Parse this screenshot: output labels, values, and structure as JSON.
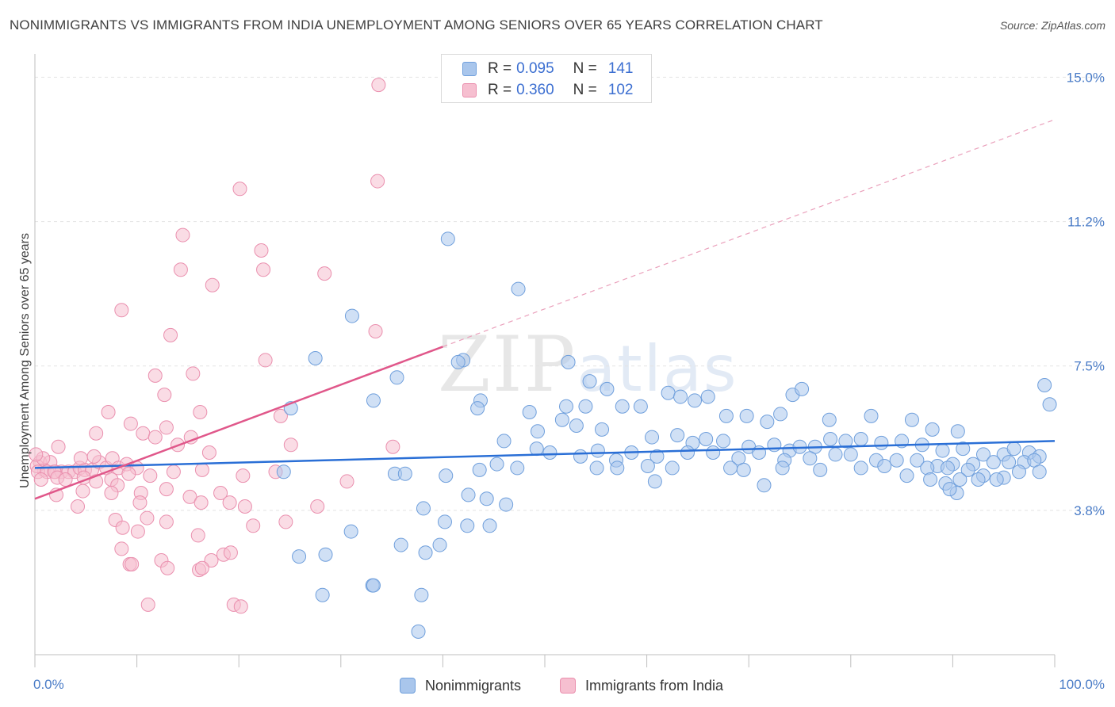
{
  "title": "NONIMMIGRANTS VS IMMIGRANTS FROM INDIA UNEMPLOYMENT AMONG SENIORS OVER 65 YEARS CORRELATION CHART",
  "source": "Source: ZipAtlas.com",
  "watermark": {
    "zip": "ZIP",
    "atlas": "atlas"
  },
  "legend": {
    "rows": [
      {
        "r_label": "R =",
        "r_value": "0.095",
        "n_label": "N =",
        "n_value": "141"
      },
      {
        "r_label": "R =",
        "r_value": "0.360",
        "n_label": "N =",
        "n_value": "102"
      }
    ]
  },
  "bottom_legend": [
    "Nonimmigrants",
    "Immigrants from India"
  ],
  "colors": {
    "blue_fill": "#a9c6ec",
    "blue_stroke": "#6f9fdc",
    "blue_line": "#2a6fd6",
    "pink_fill": "#f6bfd0",
    "pink_stroke": "#ea8fae",
    "pink_line": "#e0578a"
  },
  "chart_data": {
    "type": "scatter",
    "title": "NONIMMIGRANTS VS IMMIGRANTS FROM INDIA UNEMPLOYMENT AMONG SENIORS OVER 65 YEARS CORRELATION CHART",
    "ylabel": "Unemployment Among Seniors over 65 years",
    "xlabel": "",
    "x_tick_labels": [
      "0.0%",
      "100.0%"
    ],
    "y_tick_labels": [
      "3.8%",
      "7.5%",
      "11.2%",
      "15.0%"
    ],
    "y_ticks": [
      3.75,
      7.5,
      11.25,
      15.0
    ],
    "xlim": [
      0,
      100
    ],
    "ylim": [
      0,
      15.4
    ],
    "grid": true,
    "legend_position": "top-center",
    "series": [
      {
        "name": "Nonimmigrants",
        "r": 0.095,
        "n": 141,
        "trend": {
          "x": [
            0,
            100
          ],
          "y": [
            4.85,
            5.55
          ],
          "style": "solid"
        },
        "points": [
          [
            40.5,
            10.8
          ],
          [
            47.4,
            9.5
          ],
          [
            31.1,
            8.8
          ],
          [
            27.5,
            7.7
          ],
          [
            42,
            7.65
          ],
          [
            41.5,
            7.6
          ],
          [
            52.3,
            7.6
          ],
          [
            35.5,
            7.2
          ],
          [
            54.4,
            7.1
          ],
          [
            56.1,
            6.9
          ],
          [
            43.7,
            6.6
          ],
          [
            33.2,
            6.6
          ],
          [
            25.1,
            6.4
          ],
          [
            43.4,
            6.4
          ],
          [
            48.5,
            6.3
          ],
          [
            52.1,
            6.45
          ],
          [
            54,
            6.45
          ],
          [
            57.6,
            6.45
          ],
          [
            59.4,
            6.45
          ],
          [
            62.1,
            6.8
          ],
          [
            63.3,
            6.7
          ],
          [
            64.7,
            6.6
          ],
          [
            66,
            6.7
          ],
          [
            67.8,
            6.2
          ],
          [
            69.8,
            6.2
          ],
          [
            71.8,
            6.05
          ],
          [
            73.1,
            6.25
          ],
          [
            74.3,
            6.75
          ],
          [
            75.2,
            6.9
          ],
          [
            77.9,
            6.1
          ],
          [
            82,
            6.2
          ],
          [
            86,
            6.1
          ],
          [
            88,
            5.85
          ],
          [
            90.5,
            5.8
          ],
          [
            51.7,
            6.1
          ],
          [
            53.1,
            5.95
          ],
          [
            55.6,
            5.85
          ],
          [
            49.3,
            5.8
          ],
          [
            46,
            5.55
          ],
          [
            60.5,
            5.65
          ],
          [
            63,
            5.7
          ],
          [
            64.5,
            5.5
          ],
          [
            65.8,
            5.6
          ],
          [
            67.5,
            5.55
          ],
          [
            70,
            5.4
          ],
          [
            72.5,
            5.45
          ],
          [
            74,
            5.3
          ],
          [
            75,
            5.4
          ],
          [
            76.5,
            5.4
          ],
          [
            78,
            5.6
          ],
          [
            79.5,
            5.55
          ],
          [
            81,
            5.6
          ],
          [
            83,
            5.5
          ],
          [
            85,
            5.55
          ],
          [
            87,
            5.45
          ],
          [
            89,
            5.3
          ],
          [
            91,
            5.35
          ],
          [
            93,
            5.2
          ],
          [
            95,
            5.2
          ],
          [
            96,
            5.35
          ],
          [
            97.5,
            5.25
          ],
          [
            98.5,
            5.15
          ],
          [
            49.2,
            5.35
          ],
          [
            50.5,
            5.25
          ],
          [
            53.5,
            5.15
          ],
          [
            55.2,
            5.3
          ],
          [
            57,
            5.05
          ],
          [
            58.5,
            5.25
          ],
          [
            61,
            5.15
          ],
          [
            64,
            5.25
          ],
          [
            66.5,
            5.25
          ],
          [
            69,
            5.1
          ],
          [
            71,
            5.25
          ],
          [
            73.5,
            5.05
          ],
          [
            76,
            5.1
          ],
          [
            78.5,
            5.2
          ],
          [
            80,
            5.2
          ],
          [
            82.5,
            5.05
          ],
          [
            84.5,
            5.05
          ],
          [
            86.5,
            5.05
          ],
          [
            88.5,
            4.9
          ],
          [
            90,
            4.95
          ],
          [
            92,
            4.95
          ],
          [
            94,
            5.0
          ],
          [
            95.5,
            5.0
          ],
          [
            97,
            5.0
          ],
          [
            98,
            5.05
          ],
          [
            87.5,
            4.85
          ],
          [
            89.5,
            4.85
          ],
          [
            91.5,
            4.8
          ],
          [
            93,
            4.65
          ],
          [
            95,
            4.6
          ],
          [
            96.5,
            4.75
          ],
          [
            98.5,
            4.75
          ],
          [
            85.5,
            4.65
          ],
          [
            87.8,
            4.55
          ],
          [
            89.3,
            4.45
          ],
          [
            90.7,
            4.55
          ],
          [
            92.5,
            4.55
          ],
          [
            94.3,
            4.55
          ],
          [
            81,
            4.85
          ],
          [
            83.3,
            4.9
          ],
          [
            77,
            4.8
          ],
          [
            73.3,
            4.85
          ],
          [
            69.5,
            4.8
          ],
          [
            62.5,
            4.85
          ],
          [
            60.1,
            4.9
          ],
          [
            57.1,
            4.85
          ],
          [
            55.1,
            4.85
          ],
          [
            47.3,
            4.85
          ],
          [
            45.3,
            4.95
          ],
          [
            43.6,
            4.8
          ],
          [
            40.3,
            4.65
          ],
          [
            35.3,
            4.7
          ],
          [
            36.3,
            4.7
          ],
          [
            24.4,
            4.75
          ],
          [
            60.8,
            4.5
          ],
          [
            68.2,
            4.85
          ],
          [
            71.5,
            4.4
          ],
          [
            44.3,
            4.05
          ],
          [
            42.5,
            4.15
          ],
          [
            38.1,
            3.8
          ],
          [
            46.2,
            3.9
          ],
          [
            40.2,
            3.45
          ],
          [
            42.4,
            3.35
          ],
          [
            44.6,
            3.35
          ],
          [
            31,
            3.2
          ],
          [
            35.9,
            2.85
          ],
          [
            38.3,
            2.65
          ],
          [
            39.7,
            2.85
          ],
          [
            25.9,
            2.55
          ],
          [
            28.5,
            2.6
          ],
          [
            28.2,
            1.55
          ],
          [
            33.1,
            1.8
          ],
          [
            33.2,
            1.8
          ],
          [
            37.9,
            1.55
          ],
          [
            37.6,
            0.6
          ],
          [
            90.4,
            4.2
          ],
          [
            89.7,
            4.3
          ],
          [
            99,
            7.0
          ],
          [
            99.5,
            6.5
          ]
        ]
      },
      {
        "name": "Immigrants from India",
        "r": 0.36,
        "n": 102,
        "trend": {
          "x": [
            0,
            40
          ],
          "y": [
            4.05,
            8.0
          ],
          "style": "solid",
          "extension": {
            "x": [
              40,
              100
            ],
            "y": [
              8.0,
              13.9
            ],
            "style": "dashed"
          }
        },
        "points": [
          [
            33.7,
            14.8
          ],
          [
            33.6,
            12.3
          ],
          [
            20.1,
            12.1
          ],
          [
            14.5,
            10.9
          ],
          [
            22.2,
            10.5
          ],
          [
            22.4,
            10.0
          ],
          [
            14.3,
            10.0
          ],
          [
            17.4,
            9.6
          ],
          [
            28.4,
            9.9
          ],
          [
            8.5,
            8.95
          ],
          [
            13.3,
            8.3
          ],
          [
            33.4,
            8.4
          ],
          [
            22.6,
            7.65
          ],
          [
            15.5,
            7.3
          ],
          [
            11.8,
            7.25
          ],
          [
            12.7,
            6.75
          ],
          [
            7.2,
            6.3
          ],
          [
            16.2,
            6.3
          ],
          [
            24.1,
            6.2
          ],
          [
            9.4,
            6.0
          ],
          [
            12.9,
            5.9
          ],
          [
            10.6,
            5.75
          ],
          [
            6,
            5.75
          ],
          [
            14,
            5.45
          ],
          [
            11.8,
            5.65
          ],
          [
            15.3,
            5.65
          ],
          [
            25.1,
            5.45
          ],
          [
            35.1,
            5.4
          ],
          [
            17.1,
            5.25
          ],
          [
            2.3,
            5.4
          ],
          [
            0.5,
            5.0
          ],
          [
            1.5,
            5.0
          ],
          [
            0.9,
            4.8
          ],
          [
            0.2,
            4.9
          ],
          [
            0.3,
            4.75
          ],
          [
            1.2,
            4.75
          ],
          [
            2,
            4.75
          ],
          [
            2.6,
            4.75
          ],
          [
            3.3,
            4.75
          ],
          [
            3.9,
            4.75
          ],
          [
            4.4,
            4.85
          ],
          [
            4.9,
            4.8
          ],
          [
            5.6,
            4.8
          ],
          [
            6.3,
            5.0
          ],
          [
            7.0,
            4.85
          ],
          [
            7.6,
            5.1
          ],
          [
            8.2,
            4.85
          ],
          [
            9.0,
            4.95
          ],
          [
            10.0,
            4.85
          ],
          [
            4.5,
            5.1
          ],
          [
            5.8,
            5.15
          ],
          [
            0.8,
            5.1
          ],
          [
            1.9,
            4.75
          ],
          [
            0.6,
            4.55
          ],
          [
            2.2,
            4.6
          ],
          [
            3.0,
            4.55
          ],
          [
            4.8,
            4.6
          ],
          [
            6.0,
            4.5
          ],
          [
            7.5,
            4.55
          ],
          [
            9.2,
            4.7
          ],
          [
            11.3,
            4.65
          ],
          [
            13.6,
            4.75
          ],
          [
            16.4,
            4.8
          ],
          [
            20.4,
            4.65
          ],
          [
            23.6,
            4.75
          ],
          [
            30.6,
            4.5
          ],
          [
            8.1,
            4.4
          ],
          [
            10.4,
            4.2
          ],
          [
            12.9,
            4.3
          ],
          [
            15.2,
            4.1
          ],
          [
            2.1,
            4.15
          ],
          [
            4.7,
            4.25
          ],
          [
            7.5,
            4.2
          ],
          [
            10.3,
            3.95
          ],
          [
            16.3,
            3.95
          ],
          [
            18.2,
            4.2
          ],
          [
            19.1,
            3.95
          ],
          [
            20.6,
            3.85
          ],
          [
            27.7,
            3.85
          ],
          [
            4.2,
            3.85
          ],
          [
            7.9,
            3.5
          ],
          [
            11.0,
            3.55
          ],
          [
            12.9,
            3.45
          ],
          [
            8.6,
            3.3
          ],
          [
            10.1,
            3.2
          ],
          [
            16.0,
            3.1
          ],
          [
            21.4,
            3.35
          ],
          [
            24.6,
            3.45
          ],
          [
            8.5,
            2.75
          ],
          [
            12.4,
            2.45
          ],
          [
            17.3,
            2.45
          ],
          [
            18.5,
            2.6
          ],
          [
            19.2,
            2.65
          ],
          [
            9.3,
            2.35
          ],
          [
            9.5,
            2.35
          ],
          [
            13.0,
            2.25
          ],
          [
            16.1,
            2.2
          ],
          [
            16.4,
            2.25
          ],
          [
            11.1,
            1.3
          ],
          [
            19.5,
            1.3
          ],
          [
            20.2,
            1.25
          ],
          [
            0.1,
            5.2
          ]
        ]
      }
    ]
  }
}
